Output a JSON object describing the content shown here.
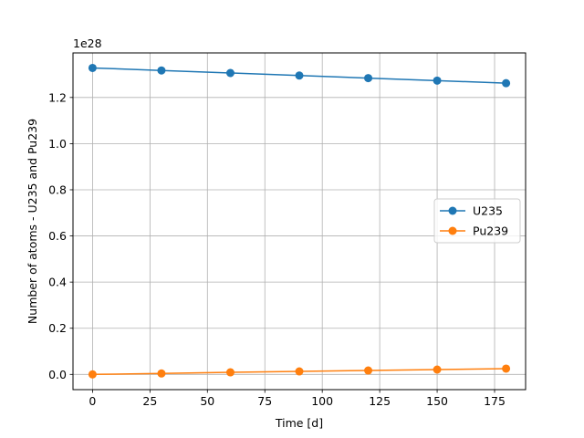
{
  "chart_data": {
    "type": "line",
    "xlabel": "Time [d]",
    "ylabel": "Number of atoms - U235 and Pu239",
    "offset_label": "1e28",
    "x": [
      0,
      30,
      60,
      90,
      120,
      150,
      180
    ],
    "xlim": [
      -8.5,
      188.5
    ],
    "ylim": [
      -0.066,
      1.393
    ],
    "xticks": [
      0,
      25,
      50,
      75,
      100,
      125,
      150,
      175
    ],
    "yticks": [
      0.0,
      0.2,
      0.4,
      0.6,
      0.8,
      1.0,
      1.2
    ],
    "xtick_labels": [
      "0",
      "25",
      "50",
      "75",
      "100",
      "125",
      "150",
      "175"
    ],
    "ytick_labels": [
      "0.0",
      "0.2",
      "0.4",
      "0.6",
      "0.8",
      "1.0",
      "1.2"
    ],
    "grid": true,
    "legend_position": "center-right",
    "series": [
      {
        "name": "U235",
        "color": "#1f77b4",
        "values": [
          1.328,
          1.317,
          1.306,
          1.295,
          1.284,
          1.273,
          1.262
        ]
      },
      {
        "name": "Pu239",
        "color": "#ff7f0e",
        "values": [
          0.0,
          0.004,
          0.009,
          0.013,
          0.017,
          0.021,
          0.025
        ]
      }
    ]
  }
}
